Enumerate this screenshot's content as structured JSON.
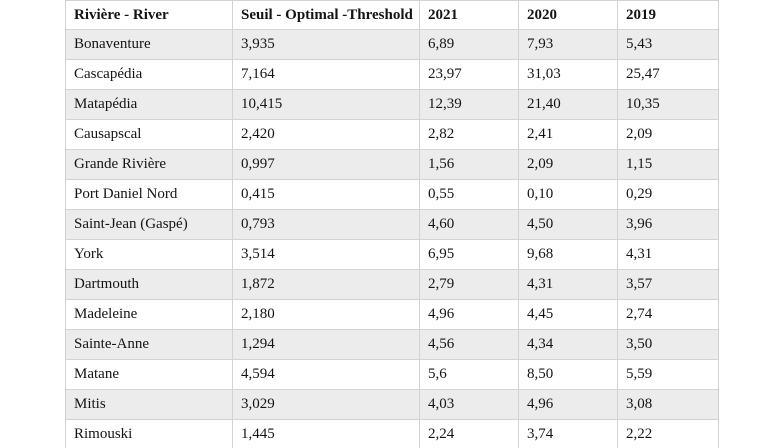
{
  "table": {
    "columns": [
      "Rivière - River",
      "Seuil - Optimal -Threshold",
      "2021",
      "2020",
      "2019"
    ],
    "rows": [
      [
        "Bonaventure",
        "3,935",
        "6,89",
        "7,93",
        "5,43"
      ],
      [
        "Cascapédia",
        "7,164",
        "23,97",
        "31,03",
        "25,47"
      ],
      [
        "Matapédia",
        "10,415",
        "12,39",
        "21,40",
        "10,35"
      ],
      [
        "Causapscal",
        "2,420",
        "2,82",
        "2,41",
        "2,09"
      ],
      [
        "Grande Rivière",
        "0,997",
        "1,56",
        "2,09",
        "1,15"
      ],
      [
        "Port Daniel Nord",
        "0,415",
        "0,55",
        "0,10",
        "0,29"
      ],
      [
        "Saint-Jean (Gaspé)",
        "0,793",
        "4,60",
        "4,50",
        "3,96"
      ],
      [
        "York",
        "3,514",
        "6,95",
        "9,68",
        "4,31"
      ],
      [
        "Dartmouth",
        "1,872",
        "2,79",
        "4,31",
        "3,57"
      ],
      [
        "Madeleine",
        "2,180",
        "4,96",
        "4,45",
        "2,74"
      ],
      [
        "Sainte-Anne",
        "1,294",
        "4,56",
        "4,34",
        "3,50"
      ],
      [
        "Matane",
        "4,594",
        "5,6",
        "8,50",
        "5,59"
      ],
      [
        "Mitis",
        "3,029",
        "4,03",
        "4,96",
        "3,08"
      ],
      [
        "Rimouski",
        "1,445",
        "2,24",
        "3,74",
        "2,22"
      ]
    ],
    "colors": {
      "row_alt_background": "#ececec",
      "row_background": "#ffffff",
      "border": "#d3d3d3",
      "text": "#141414"
    }
  }
}
